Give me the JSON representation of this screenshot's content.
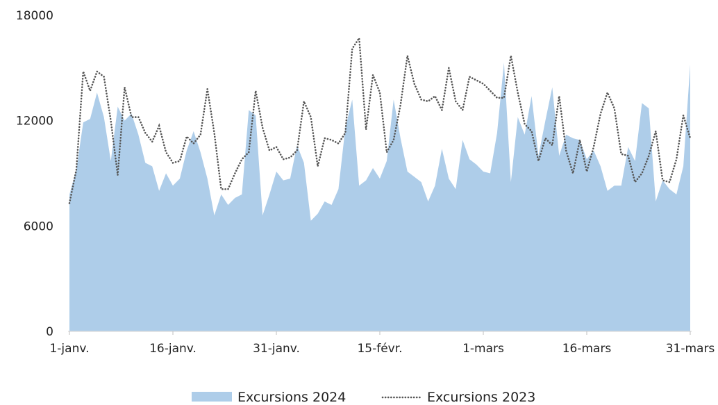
{
  "chart_data": {
    "type": "area",
    "title": "",
    "xlabel": "",
    "ylabel": "",
    "ylim": [
      0,
      18000
    ],
    "y_ticks": [
      "0",
      "6000",
      "12000",
      "18000"
    ],
    "x_tick_labels": [
      "1-janv.",
      "16-janv.",
      "31-janv.",
      "15-févr.",
      "1-mars",
      "16-mars",
      "31-mars"
    ],
    "x_tick_days": [
      0,
      15,
      30,
      45,
      60,
      75,
      90
    ],
    "grid": false,
    "legend_position": "bottom",
    "series": [
      {
        "name": "Excursions 2024",
        "style": "filled-area",
        "color": "#aecde9",
        "values": [
          7800,
          9200,
          11900,
          12100,
          13600,
          12200,
          9700,
          12800,
          12000,
          12400,
          11200,
          9600,
          9400,
          8000,
          9000,
          8300,
          8700,
          10300,
          11400,
          10200,
          8700,
          6600,
          7800,
          7200,
          7600,
          7800,
          12600,
          12300,
          6600,
          7800,
          9100,
          8600,
          8700,
          10600,
          9600,
          6300,
          6700,
          7400,
          7200,
          8100,
          11600,
          13200,
          8300,
          8600,
          9300,
          8700,
          9700,
          13200,
          11000,
          9100,
          8800,
          8500,
          7400,
          8300,
          10400,
          8700,
          8100,
          10900,
          9800,
          9500,
          9100,
          9000,
          11300,
          15300,
          8500,
          12200,
          11200,
          13400,
          10000,
          12000,
          13900,
          10000,
          11200,
          11000,
          10900,
          9800,
          10300,
          9400,
          8000,
          8300,
          8300,
          10500,
          9700,
          13000,
          12700,
          7400,
          8600,
          8100,
          7800,
          9400,
          15200
        ],
        "total_points": 91
      },
      {
        "name": "Excursions 2023",
        "style": "dotted-line",
        "color": "#555555",
        "values": [
          7300,
          9200,
          14800,
          13700,
          14800,
          14500,
          12000,
          8900,
          13900,
          12200,
          12200,
          11300,
          10800,
          11700,
          10200,
          9600,
          9700,
          11100,
          10700,
          11200,
          13800,
          11300,
          8100,
          8100,
          9000,
          9800,
          10200,
          13700,
          11600,
          10300,
          10500,
          9800,
          9900,
          10300,
          13100,
          12200,
          9400,
          11000,
          10900,
          10700,
          11300,
          16100,
          16700,
          11500,
          14600,
          13600,
          10200,
          10900,
          12900,
          15700,
          14100,
          13200,
          13100,
          13400,
          12600,
          15000,
          13100,
          12600,
          14500,
          14300,
          14100,
          13700,
          13300,
          13300,
          15700,
          13600,
          11800,
          11400,
          9700,
          11000,
          10600,
          13400,
          10300,
          9000,
          10900,
          9100,
          10500,
          12400,
          13600,
          12700,
          10100,
          10000,
          8500,
          9000,
          10000,
          11400,
          8600,
          8500,
          9800,
          12300,
          11000
        ],
        "total_points": 91
      }
    ]
  }
}
